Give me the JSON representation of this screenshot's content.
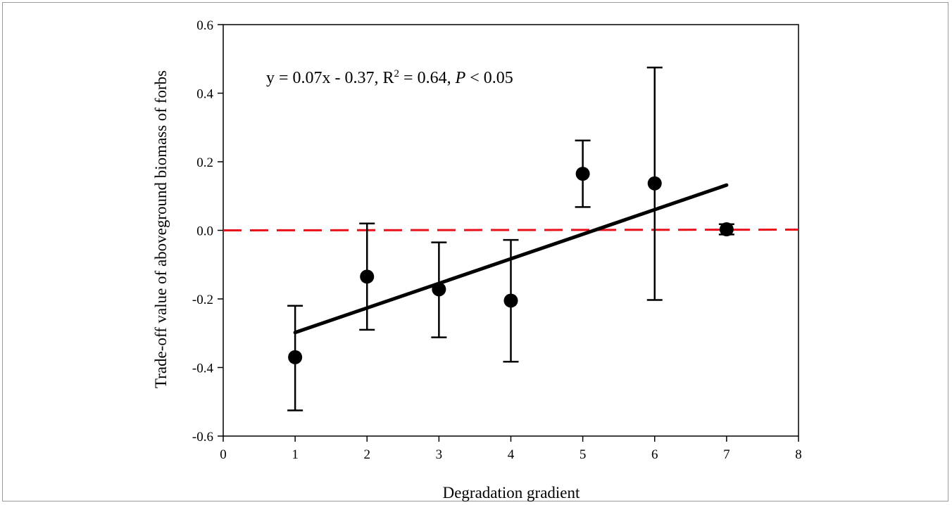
{
  "chart_data": {
    "type": "scatter",
    "xlabel": "Degradation gradient",
    "ylabel": "Trade-off value of aboveground biomass of forbs",
    "xlim": [
      0,
      8
    ],
    "ylim": [
      -0.6,
      0.6
    ],
    "xticks": [
      0,
      1,
      2,
      3,
      4,
      5,
      6,
      7,
      8
    ],
    "yticks": [
      -0.6,
      -0.4,
      -0.2,
      0.0,
      0.2,
      0.4,
      0.6
    ],
    "ytick_labels": [
      "-0.6",
      "-0.4",
      "-0.2",
      "0.0",
      "0.2",
      "0.4",
      "0.6"
    ],
    "points": [
      {
        "x": 1,
        "y": -0.37,
        "err_low": -0.525,
        "err_high": -0.22
      },
      {
        "x": 2,
        "y": -0.135,
        "err_low": -0.29,
        "err_high": 0.02
      },
      {
        "x": 3,
        "y": -0.172,
        "err_low": -0.312,
        "err_high": -0.035
      },
      {
        "x": 4,
        "y": -0.205,
        "err_low": -0.383,
        "err_high": -0.028
      },
      {
        "x": 5,
        "y": 0.165,
        "err_low": 0.068,
        "err_high": 0.262
      },
      {
        "x": 6,
        "y": 0.137,
        "err_low": -0.203,
        "err_high": 0.475
      },
      {
        "x": 7,
        "y": 0.003,
        "err_low": -0.012,
        "err_high": 0.018
      }
    ],
    "fit_line": {
      "x_start": 1,
      "x_end": 7,
      "y_start": -0.298,
      "y_end": 0.132,
      "color": "#000000"
    },
    "reference_line": {
      "y": 0.0,
      "style": "dashed",
      "color": "#e8111a"
    },
    "annotation": {
      "prefix": "y = 0.07x - 0.37, R",
      "superscript": "2",
      "middle": " = 0.64, ",
      "italic": "P",
      "suffix": " < 0.05"
    },
    "grid": false,
    "legend": "none"
  }
}
